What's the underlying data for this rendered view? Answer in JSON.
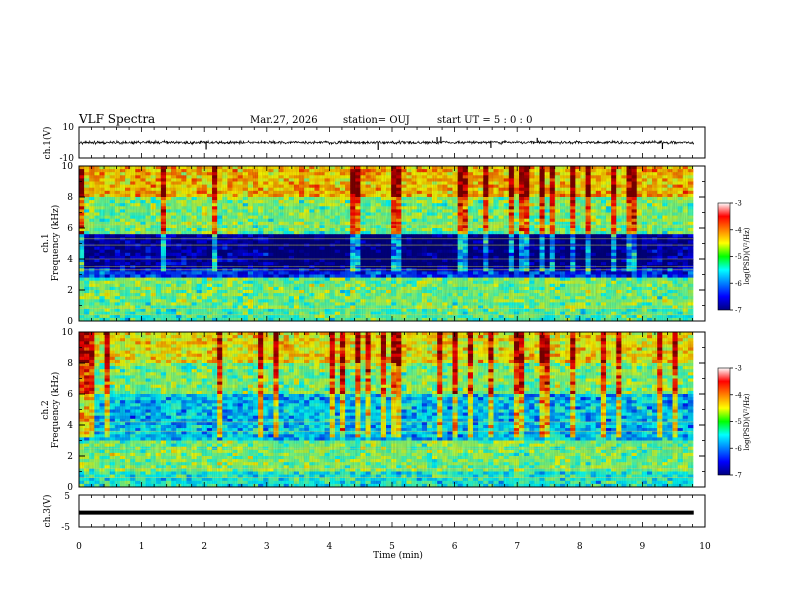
{
  "header": {
    "title": "VLF Spectra",
    "date": "Mar.27, 2026",
    "station": "station= OUJ",
    "start": "start  UT  =   5 : 0  : 0"
  },
  "chart_data": [
    {
      "type": "line",
      "name": "ch1-waveform",
      "ylabel": "ch.1(V)",
      "ylim": [
        -10,
        10
      ],
      "yticks": [
        -10,
        10
      ],
      "xlim": [
        0,
        10
      ],
      "baseline": 0,
      "spikes": [
        {
          "x": 2.03,
          "y": -4.5
        },
        {
          "x": 4.78,
          "y": -4.8
        },
        {
          "x": 5.72,
          "y": 3.5
        },
        {
          "x": 5.78,
          "y": 3.8
        },
        {
          "x": 6.58,
          "y": -3.5
        },
        {
          "x": 7.32,
          "y": 3.0
        },
        {
          "x": 9.32,
          "y": -4.2
        }
      ]
    },
    {
      "type": "heatmap",
      "name": "ch1-spectrogram",
      "ylabel": "Frequency (kHz)",
      "ylabel2": "ch.1",
      "xlim": [
        0,
        10
      ],
      "ylim": [
        0,
        10
      ],
      "yticks": [
        0,
        2,
        4,
        6,
        8,
        10
      ],
      "colorbar": {
        "label": "log(PSD)(V²/Hz)",
        "ticks": [
          -3,
          -4,
          -5,
          -6,
          -7
        ],
        "range": [
          -7,
          -3
        ]
      },
      "bands": [
        {
          "f0": 0,
          "f1": 0.7,
          "value": -5.2
        },
        {
          "f0": 0.7,
          "f1": 2.8,
          "value": -5.0
        },
        {
          "f0": 2.8,
          "f1": 3.4,
          "value": -6.3
        },
        {
          "f0": 3.4,
          "f1": 5.6,
          "value": -6.8
        },
        {
          "f0": 5.6,
          "f1": 8.0,
          "value": -5.0
        },
        {
          "f0": 8.0,
          "f1": 10.0,
          "value": -4.3
        }
      ]
    },
    {
      "type": "heatmap",
      "name": "ch2-spectrogram",
      "ylabel": "Frequency (kHz)",
      "ylabel2": "ch.2",
      "xlim": [
        0,
        10
      ],
      "ylim": [
        0,
        10
      ],
      "yticks": [
        0,
        2,
        4,
        6,
        8,
        10
      ],
      "colorbar": {
        "label": "log(PSD)(V²/Hz)",
        "ticks": [
          -3,
          -4,
          -5,
          -6,
          -7
        ],
        "range": [
          -7,
          -3
        ]
      },
      "bands": [
        {
          "f0": 0,
          "f1": 1.0,
          "value": -5.4
        },
        {
          "f0": 1.0,
          "f1": 3.0,
          "value": -5.0
        },
        {
          "f0": 3.0,
          "f1": 6.0,
          "value": -5.7
        },
        {
          "f0": 6.0,
          "f1": 8.0,
          "value": -5.0
        },
        {
          "f0": 8.0,
          "f1": 10.0,
          "value": -4.5
        }
      ]
    },
    {
      "type": "line",
      "name": "ch3-waveform",
      "ylabel": "ch.3(V)",
      "ylim": [
        -5,
        5
      ],
      "yticks": [
        -5,
        5
      ],
      "xlim": [
        0,
        10
      ],
      "xlabel": "Time (min)",
      "xticks": [
        0,
        1,
        2,
        3,
        4,
        5,
        6,
        7,
        8,
        9,
        10
      ],
      "baseline": -0.5
    }
  ]
}
